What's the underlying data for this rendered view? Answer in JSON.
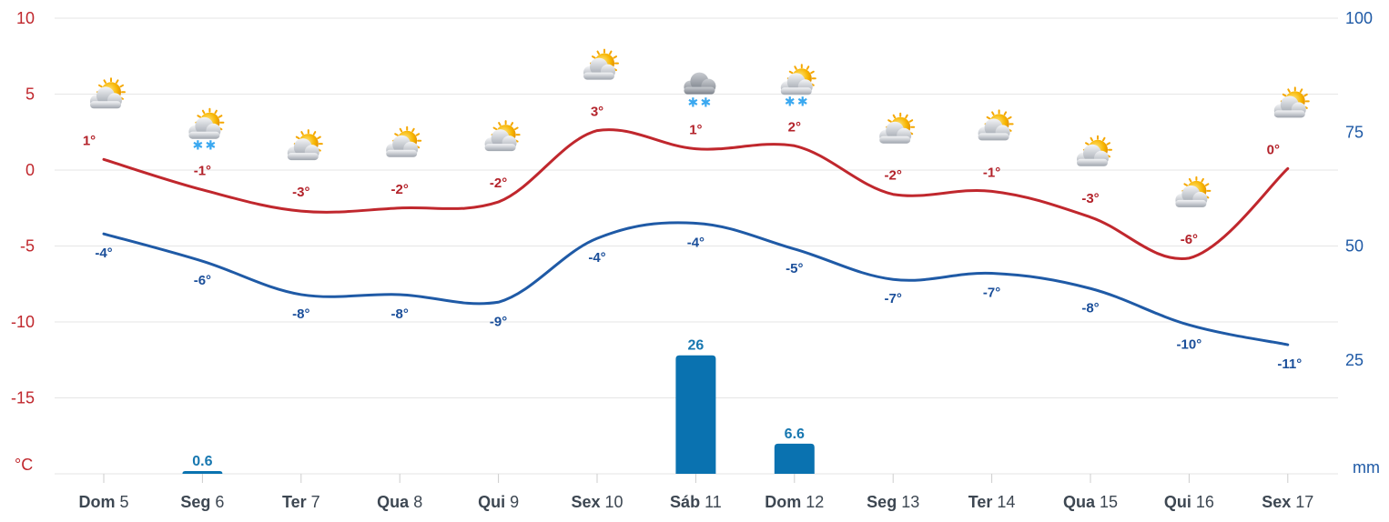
{
  "chart_data": {
    "type": "line",
    "left_axis": {
      "unit": "°C",
      "ticks": [
        "10",
        "5",
        "0",
        "-5",
        "-10",
        "-15"
      ],
      "ylim": [
        -20,
        10
      ]
    },
    "right_axis": {
      "unit": "mm",
      "ticks": [
        "100",
        "75",
        "50",
        "25"
      ],
      "ylim": [
        0,
        100
      ]
    },
    "grid": true,
    "categories": [
      {
        "weekday": "Dom",
        "day": "5"
      },
      {
        "weekday": "Seg",
        "day": "6"
      },
      {
        "weekday": "Ter",
        "day": "7"
      },
      {
        "weekday": "Qua",
        "day": "8"
      },
      {
        "weekday": "Qui",
        "day": "9"
      },
      {
        "weekday": "Sex",
        "day": "10"
      },
      {
        "weekday": "Sáb",
        "day": "11"
      },
      {
        "weekday": "Dom",
        "day": "12"
      },
      {
        "weekday": "Seg",
        "day": "13"
      },
      {
        "weekday": "Ter",
        "day": "14"
      },
      {
        "weekday": "Qua",
        "day": "15"
      },
      {
        "weekday": "Qui",
        "day": "16"
      },
      {
        "weekday": "Sex",
        "day": "17"
      }
    ],
    "series": [
      {
        "color": "#c0272d",
        "values": [
          0.7,
          -1.3,
          -2.7,
          -2.5,
          -2.1,
          2.6,
          1.4,
          1.6,
          -1.6,
          -1.4,
          -3.1,
          -5.8,
          0.1
        ],
        "labels": [
          "1°",
          "-1°",
          "-3°",
          "-2°",
          "-2°",
          "3°",
          "1°",
          "2°",
          "-2°",
          "-1°",
          "-3°",
          "-6°",
          "0°"
        ]
      },
      {
        "color": "#1f5aa6",
        "values": [
          -4.2,
          -6.0,
          -8.2,
          -8.2,
          -8.7,
          -4.5,
          -3.5,
          -5.2,
          -7.2,
          -6.8,
          -7.8,
          -10.2,
          -11.5
        ],
        "labels": [
          "-4°",
          "-6°",
          "-8°",
          "-8°",
          "-9°",
          "-4°",
          "-4°",
          "-5°",
          "-7°",
          "-7°",
          "-8°",
          "-10°",
          "-11°"
        ]
      }
    ],
    "precipitation": {
      "color": "#0a72b0",
      "bars": [
        {
          "index": 1,
          "value": 0.6,
          "label": "0.6"
        },
        {
          "index": 6,
          "value": 26,
          "label": "26"
        },
        {
          "index": 7,
          "value": 6.6,
          "label": "6.6"
        }
      ]
    },
    "weather_icons": [
      "sun-cloud-icon",
      "sun-cloud-snow-icon",
      "sun-cloud-icon",
      "sun-cloud-icon",
      "sun-cloud-icon",
      "sun-cloud-icon",
      "cloud-snow-icon",
      "sun-cloud-snow-icon",
      "sun-cloud-icon",
      "sun-cloud-icon",
      "sun-cloud-icon",
      "sun-cloud-icon",
      "sun-cloud-icon"
    ]
  }
}
